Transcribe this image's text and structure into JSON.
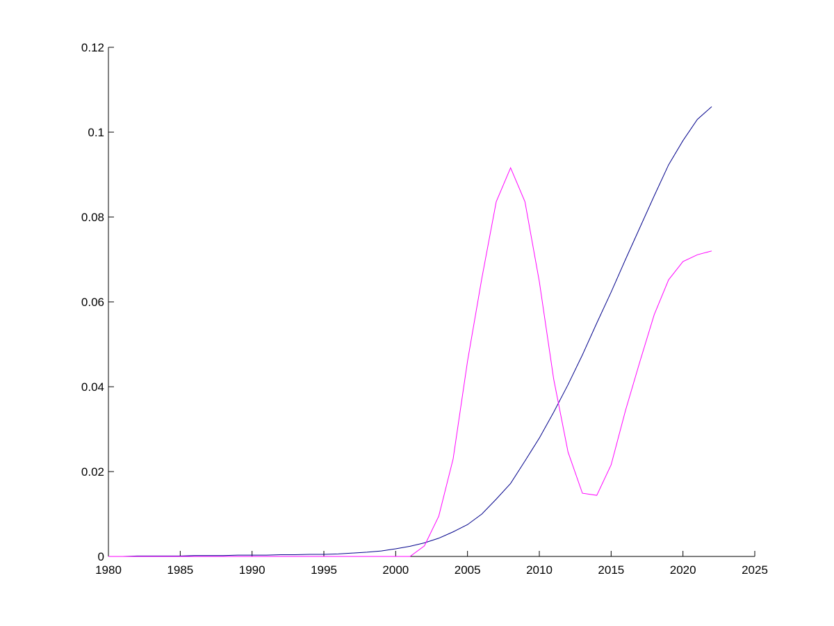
{
  "chart_data": {
    "type": "line",
    "x": [
      1980,
      1981,
      1982,
      1983,
      1984,
      1985,
      1986,
      1987,
      1988,
      1989,
      1990,
      1991,
      1992,
      1993,
      1994,
      1995,
      1996,
      1997,
      1998,
      1999,
      2000,
      2001,
      2002,
      2003,
      2004,
      2005,
      2006,
      2007,
      2008,
      2009,
      2010,
      2011,
      2012,
      2013,
      2014,
      2015,
      2016,
      2017,
      2018,
      2019,
      2020,
      2021,
      2022
    ],
    "series": [
      {
        "color": "#00008b",
        "values": [
          0,
          0,
          0.0001,
          0.0001,
          0.0001,
          0.0001,
          0.0002,
          0.0002,
          0.0002,
          0.0003,
          0.0003,
          0.0003,
          0.0004,
          0.0004,
          0.0005,
          0.0005,
          0.0006,
          0.0008,
          0.001,
          0.0013,
          0.0018,
          0.0024,
          0.0032,
          0.0043,
          0.0058,
          0.0075,
          0.01,
          0.0135,
          0.0172,
          0.0225,
          0.0279,
          0.034,
          0.0405,
          0.0475,
          0.055,
          0.0623,
          0.07,
          0.0775,
          0.085,
          0.0923,
          0.098,
          0.103,
          0.106
        ]
      },
      {
        "color": "#ff00ff",
        "values": [
          0,
          0,
          0,
          0,
          0,
          0,
          0,
          0,
          0,
          0,
          0,
          0,
          0,
          0,
          0,
          0,
          0,
          0,
          0,
          0,
          0,
          0,
          0.0025,
          0.0095,
          0.023,
          0.046,
          0.0656,
          0.0836,
          0.0916,
          0.0836,
          0.0648,
          0.0418,
          0.0246,
          0.0149,
          0.0144,
          0.0216,
          0.0344,
          0.0459,
          0.057,
          0.0652,
          0.0695,
          0.0711,
          0.072
        ]
      }
    ],
    "xlim": [
      1980,
      2025
    ],
    "xticks": [
      1980,
      1985,
      1990,
      1995,
      2000,
      2005,
      2010,
      2015,
      2020,
      2025
    ],
    "ylim": [
      0,
      0.12
    ],
    "yticks": [
      0,
      0.02,
      0.04,
      0.06,
      0.08,
      0.1,
      0.12
    ],
    "grid": false
  }
}
